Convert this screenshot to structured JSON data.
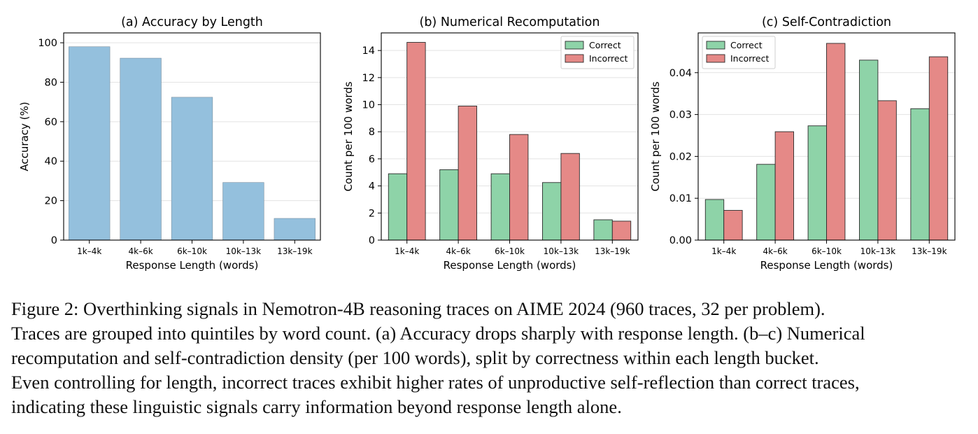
{
  "chart_data": [
    {
      "type": "bar",
      "title": "(a) Accuracy by Length",
      "xlabel": "Response Length (words)",
      "ylabel": "Accuracy (%)",
      "categories": [
        "1k–4k",
        "4k–6k",
        "6k–10k",
        "10k–13k",
        "13k–19k"
      ],
      "values": [
        98,
        92.2,
        72.4,
        29.2,
        11
      ],
      "ylim": [
        0,
        105
      ],
      "yticks": [
        "0",
        "20",
        "40",
        "60",
        "80",
        "100"
      ],
      "ytick_values": [
        0,
        20,
        40,
        60,
        80,
        100
      ],
      "grid": true,
      "colors": [
        "#94c0dd"
      ]
    },
    {
      "type": "bar",
      "title": "(b) Numerical Recomputation",
      "xlabel": "Response Length (words)",
      "ylabel": "Count per 100 words",
      "categories": [
        "1k–4k",
        "4k–6k",
        "6k–10k",
        "10k–13k",
        "13k–19k"
      ],
      "series": [
        {
          "name": "Correct",
          "values": [
            4.9,
            5.2,
            4.9,
            4.25,
            1.5
          ]
        },
        {
          "name": "Incorrect",
          "values": [
            14.6,
            9.9,
            7.8,
            6.4,
            1.4
          ]
        }
      ],
      "ylim": [
        0,
        15.3
      ],
      "yticks": [
        "0",
        "2",
        "4",
        "6",
        "8",
        "10",
        "12",
        "14"
      ],
      "ytick_values": [
        0,
        2,
        4,
        6,
        8,
        10,
        12,
        14
      ],
      "grid": true,
      "legend": "top-right",
      "colors": [
        "#8ed3a8",
        "#e58987"
      ]
    },
    {
      "type": "bar",
      "title": "(c) Self-Contradiction",
      "xlabel": "Response Length (words)",
      "ylabel": "Count per 100 words",
      "categories": [
        "1k–4k",
        "4k–6k",
        "6k–10k",
        "10k–13k",
        "13k–19k"
      ],
      "series": [
        {
          "name": "Correct",
          "values": [
            0.0097,
            0.0181,
            0.0273,
            0.043,
            0.0314
          ]
        },
        {
          "name": "Incorrect",
          "values": [
            0.0071,
            0.0259,
            0.047,
            0.0333,
            0.0438
          ]
        }
      ],
      "ylim": [
        0,
        0.0495
      ],
      "yticks": [
        "0.00",
        "0.01",
        "0.02",
        "0.03",
        "0.04"
      ],
      "ytick_values": [
        0,
        0.01,
        0.02,
        0.03,
        0.04
      ],
      "grid": true,
      "legend": "top-left",
      "colors": [
        "#8ed3a8",
        "#e58987"
      ]
    }
  ],
  "caption": {
    "lines": [
      "Figure 2: Overthinking signals in Nemotron-4B reasoning traces on AIME 2024 (960 traces, 32 per problem).",
      "Traces are grouped into quintiles by word count. (a) Accuracy drops sharply with response length. (b–c) Numerical",
      "recomputation and self-contradiction density (per 100 words), split by correctness within each length bucket.",
      "Even controlling for length, incorrect traces exhibit higher rates of unproductive self-reflection than correct traces,",
      "indicating these linguistic signals carry information beyond response length alone."
    ]
  }
}
